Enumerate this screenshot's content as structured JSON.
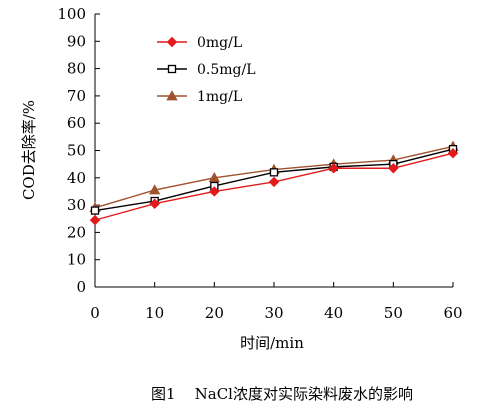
{
  "chart_data": {
    "type": "line",
    "x": [
      0,
      10,
      20,
      30,
      40,
      50,
      60
    ],
    "xlabel": "时间/min",
    "ylabel": "COD去除率/%",
    "xlim": [
      0,
      60
    ],
    "ylim": [
      0,
      100
    ],
    "xticks": [
      0,
      10,
      20,
      30,
      40,
      50,
      60
    ],
    "yticks": [
      0,
      10,
      20,
      30,
      40,
      50,
      60,
      70,
      80,
      90,
      100
    ],
    "grid": false,
    "legend_position": "top-left",
    "series": [
      {
        "name": "0mg/L",
        "marker": "diamond",
        "color": "#e31a1c",
        "values": [
          24.5,
          30.5,
          35,
          38.5,
          43.5,
          43.5,
          49
        ]
      },
      {
        "name": "0.5mg/L",
        "marker": "square-open",
        "color": "#000000",
        "values": [
          28,
          31.5,
          37,
          42,
          44,
          45,
          50.5
        ]
      },
      {
        "name": "1mg/L",
        "marker": "triangle",
        "color": "#a0522d",
        "values": [
          29,
          35.5,
          40,
          43,
          45,
          46.5,
          51.5
        ]
      }
    ]
  },
  "caption": "图1    NaCl浓度对实际染料废水的影响"
}
